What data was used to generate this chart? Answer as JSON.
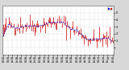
{
  "bg_color": "#d8d8d8",
  "plot_bg_color": "#ffffff",
  "ylim": [
    -1,
    6
  ],
  "yticks": [
    0,
    1,
    2,
    3,
    4,
    5
  ],
  "yticklabels": [
    "",
    "1",
    "2",
    "3",
    "4",
    "5"
  ],
  "bar_color": "#cc0000",
  "line_color": "#0000cc",
  "title_fontsize": 3.5,
  "tick_fontsize": 2.8,
  "n_points": 130,
  "seed": 42,
  "legend_colors": [
    "#0000cc",
    "#cc0000"
  ]
}
